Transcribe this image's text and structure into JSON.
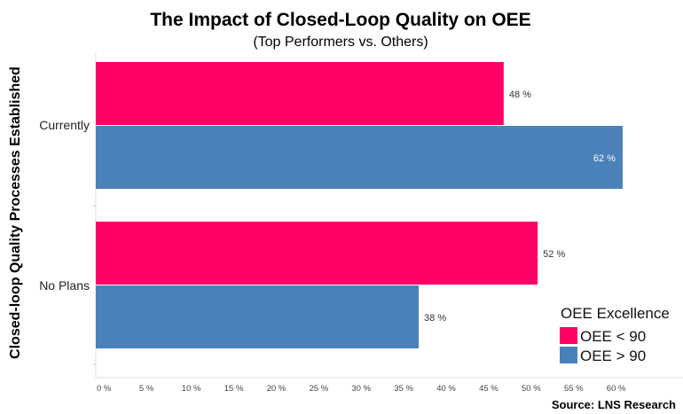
{
  "chart_data": {
    "type": "bar",
    "orientation": "horizontal",
    "title": "The Impact of Closed-Loop Quality on OEE",
    "subtitle": "(Top Performers vs. Others)",
    "ylabel": "Closed-loop Quality Processes Established",
    "xlabel": "",
    "categories": [
      "Currently",
      "No Plans"
    ],
    "series": [
      {
        "name": "OEE < 90",
        "color": "#FF0066",
        "values": [
          48,
          52
        ],
        "labels": [
          "48 %",
          "52 %"
        ]
      },
      {
        "name": "OEE > 90",
        "color": "#4A81B8",
        "values": [
          62,
          38
        ],
        "labels": [
          "62 %",
          "38 %"
        ]
      }
    ],
    "xticks": [
      0,
      5,
      10,
      15,
      20,
      25,
      30,
      35,
      40,
      45,
      50,
      55,
      60
    ],
    "xtick_labels": [
      "0 %",
      "5 %",
      "10 %",
      "15 %",
      "20 %",
      "25 %",
      "30 %",
      "35 %",
      "40 %",
      "45 %",
      "50 %",
      "55 %",
      "60 %"
    ],
    "xlim": [
      0,
      69
    ],
    "grid": false,
    "legend": {
      "title": "OEE Excellence",
      "placement": "bottom-right"
    },
    "source": "Source: LNS Research"
  }
}
